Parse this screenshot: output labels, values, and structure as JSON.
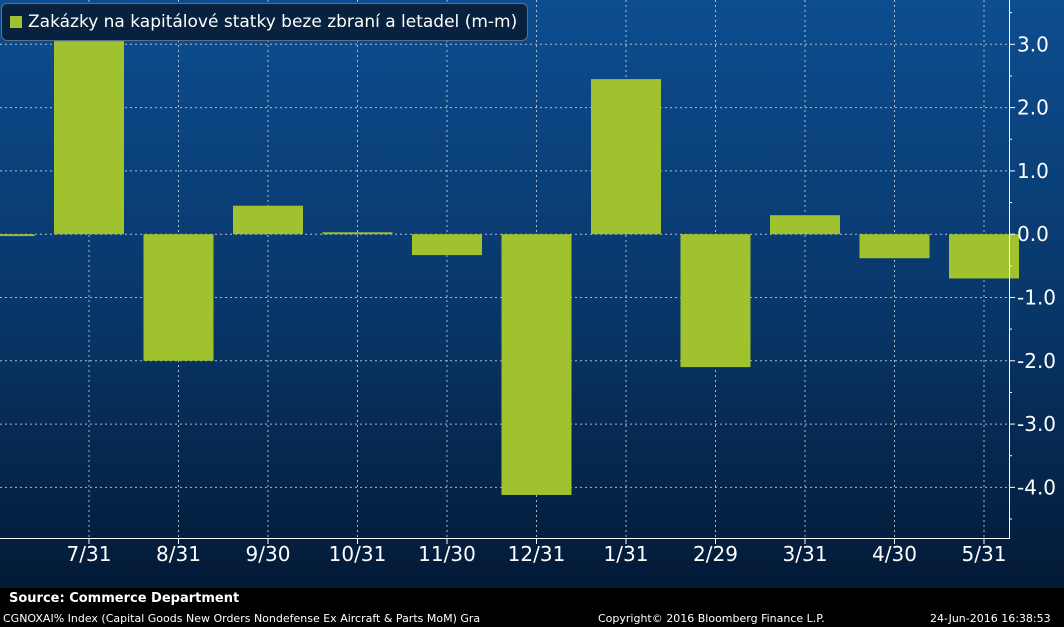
{
  "chart_data": {
    "type": "bar",
    "categories": [
      "",
      "7/31",
      "8/31",
      "9/30",
      "10/31",
      "11/30",
      "12/31",
      "1/31",
      "2/29",
      "3/31",
      "4/30",
      "5/31"
    ],
    "series": [
      {
        "name": "Zakázky na kapitálové statky beze zbraní a letadel (m-m)",
        "values": [
          -0.03,
          3.05,
          -2.0,
          0.45,
          0.03,
          -0.33,
          -4.12,
          2.45,
          -2.1,
          0.3,
          -0.38,
          -0.7
        ]
      }
    ],
    "y_ticks": [
      "3.0",
      "2.0",
      "1.0",
      "0.0",
      "-1.0",
      "-2.0",
      "-3.0",
      "-4.0"
    ],
    "y_tick_values": [
      3,
      2,
      1,
      0,
      -1,
      -2,
      -3,
      -4
    ],
    "ylim": [
      -4.8,
      3.7
    ],
    "grid": true,
    "legend_position": "top-left",
    "bar_color": "#9fc22e"
  },
  "footer": {
    "source": "Source: Commerce Department",
    "index": "CGNOXAI% Index (Capital Goods New Orders Nondefense Ex Aircraft & Parts MoM) Gra",
    "copyright": "Copyright© 2016 Bloomberg Finance L.P.",
    "timestamp": "24-Jun-2016 16:38:53"
  }
}
